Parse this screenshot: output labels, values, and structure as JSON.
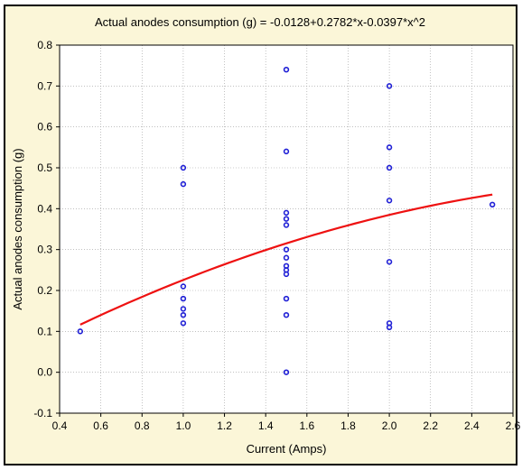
{
  "chart_data": {
    "type": "scatter",
    "title": "Actual anodes consumption (g) = -0.0128+0.2782*x-0.0397*x^2",
    "xlabel": "Current (Amps)",
    "ylabel": "Actual anodes consumption (g)",
    "xlim": [
      0.4,
      2.6
    ],
    "ylim": [
      -0.1,
      0.8
    ],
    "x_ticks": [
      "0.4",
      "0.6",
      "0.8",
      "1.0",
      "1.2",
      "1.4",
      "1.6",
      "1.8",
      "2.0",
      "2.2",
      "2.4",
      "2.6"
    ],
    "y_ticks": [
      "-0.1",
      "0.0",
      "0.1",
      "0.2",
      "0.3",
      "0.4",
      "0.5",
      "0.6",
      "0.7",
      "0.8"
    ],
    "grid": true,
    "series": [
      {
        "type": "scatter",
        "color": "#1f1fd6",
        "points": [
          [
            0.5,
            0.1
          ],
          [
            1.0,
            0.5
          ],
          [
            1.0,
            0.46
          ],
          [
            1.0,
            0.21
          ],
          [
            1.0,
            0.18
          ],
          [
            1.0,
            0.155
          ],
          [
            1.0,
            0.14
          ],
          [
            1.0,
            0.12
          ],
          [
            1.5,
            0.74
          ],
          [
            1.5,
            0.54
          ],
          [
            1.5,
            0.39
          ],
          [
            1.5,
            0.375
          ],
          [
            1.5,
            0.36
          ],
          [
            1.5,
            0.3
          ],
          [
            1.5,
            0.28
          ],
          [
            1.5,
            0.26
          ],
          [
            1.5,
            0.25
          ],
          [
            1.5,
            0.24
          ],
          [
            1.5,
            0.18
          ],
          [
            1.5,
            0.14
          ],
          [
            1.5,
            0.0
          ],
          [
            2.0,
            0.7
          ],
          [
            2.0,
            0.55
          ],
          [
            2.0,
            0.5
          ],
          [
            2.0,
            0.42
          ],
          [
            2.0,
            0.27
          ],
          [
            2.0,
            0.12
          ],
          [
            2.0,
            0.11
          ],
          [
            2.5,
            0.41
          ]
        ]
      },
      {
        "type": "line",
        "color": "#ee1111",
        "coefficients": [
          -0.0128,
          0.2782,
          -0.0397
        ],
        "x_range": [
          0.5,
          2.5
        ]
      }
    ]
  }
}
